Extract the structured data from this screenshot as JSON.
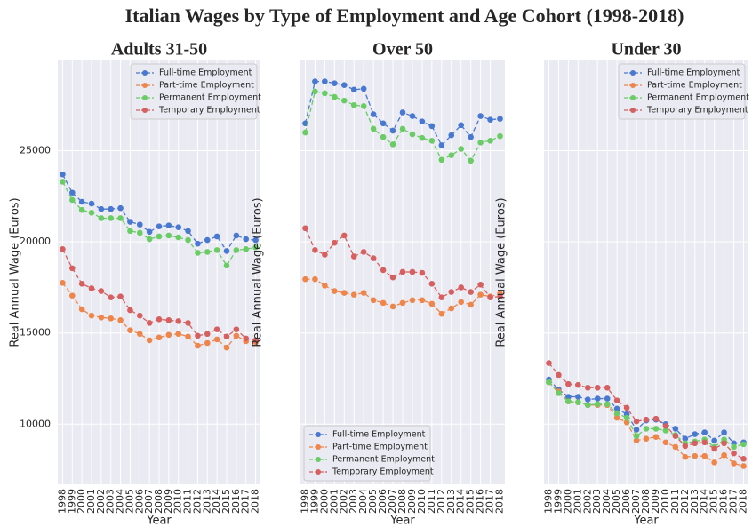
{
  "title": "Italian Wages by Type of Employment and Age Cohort (1998-2018)",
  "chart_data": [
    {
      "type": "line",
      "title": "Adults 31-50",
      "x_label": "Year",
      "y_label": "Real Annual Wage (Euros)",
      "x": [
        1998,
        1999,
        2000,
        2001,
        2002,
        2003,
        2004,
        2005,
        2006,
        2007,
        2008,
        2009,
        2010,
        2011,
        2012,
        2013,
        2014,
        2015,
        2016,
        2017,
        2018
      ],
      "xlim": [
        1997.5,
        2018.5
      ],
      "ylim": [
        6700,
        29950
      ],
      "yticks": [
        10000,
        15000,
        20000,
        25000
      ],
      "ytick_labels": true,
      "grid": true,
      "legend": "upper right",
      "series": [
        {
          "name": "Full-time Employment",
          "color": "#4878d0",
          "values": [
            23700,
            22700,
            22200,
            22100,
            21800,
            21800,
            21850,
            21100,
            20950,
            20550,
            20850,
            20900,
            20800,
            20600,
            19900,
            20100,
            20300,
            19500,
            20350,
            20150,
            20100
          ]
        },
        {
          "name": "Part-time Employment",
          "color": "#ee854a",
          "values": [
            17750,
            17050,
            16300,
            15950,
            15850,
            15800,
            15700,
            15150,
            14950,
            14600,
            14750,
            14900,
            14950,
            14800,
            14300,
            14450,
            14650,
            14200,
            14850,
            14550,
            14500
          ]
        },
        {
          "name": "Permanent Employment",
          "color": "#6acc64",
          "values": [
            23300,
            22300,
            21750,
            21600,
            21300,
            21300,
            21300,
            20600,
            20500,
            20150,
            20300,
            20350,
            20250,
            20100,
            19400,
            19450,
            19550,
            18700,
            19550,
            19600,
            19700
          ]
        },
        {
          "name": "Temporary Employment",
          "color": "#d65f5f",
          "values": [
            19600,
            18550,
            17700,
            17450,
            17300,
            16950,
            17000,
            16250,
            15950,
            15550,
            15750,
            15700,
            15650,
            15550,
            14850,
            14950,
            15200,
            14800,
            15200,
            14700,
            14600
          ]
        }
      ]
    },
    {
      "type": "line",
      "title": "Over 50",
      "x_label": "Year",
      "y_label": "Real Annual Wage (Euros)",
      "x": [
        1998,
        1999,
        2000,
        2001,
        2002,
        2003,
        2004,
        2005,
        2006,
        2007,
        2008,
        2009,
        2010,
        2011,
        2012,
        2013,
        2014,
        2015,
        2016,
        2017,
        2018
      ],
      "xlim": [
        1997.5,
        2018.5
      ],
      "ylim": [
        6700,
        29950
      ],
      "yticks": [
        10000,
        15000,
        20000,
        25000
      ],
      "ytick_labels": false,
      "grid": true,
      "legend": "lower left",
      "series": [
        {
          "name": "Full-time Employment",
          "color": "#4878d0",
          "values": [
            26500,
            28800,
            28800,
            28700,
            28600,
            28350,
            28400,
            27000,
            26500,
            26100,
            27100,
            26900,
            26600,
            26350,
            25300,
            25850,
            26400,
            25750,
            26900,
            26700,
            26750
          ]
        },
        {
          "name": "Part-time Employment",
          "color": "#ee854a",
          "values": [
            17950,
            17950,
            17600,
            17300,
            17200,
            17100,
            17200,
            16800,
            16650,
            16450,
            16650,
            16800,
            16800,
            16600,
            16050,
            16350,
            16700,
            16550,
            17100,
            17000,
            17150
          ]
        },
        {
          "name": "Permanent Employment",
          "color": "#6acc64",
          "values": [
            26000,
            28250,
            28150,
            27950,
            27750,
            27500,
            27450,
            26200,
            25750,
            25350,
            26200,
            25900,
            25700,
            25550,
            24500,
            24750,
            25100,
            24450,
            25450,
            25550,
            25800
          ]
        },
        {
          "name": "Temporary Employment",
          "color": "#d65f5f",
          "values": [
            20750,
            19550,
            19300,
            19950,
            20350,
            19200,
            19450,
            19100,
            18450,
            18050,
            18350,
            18350,
            18300,
            17700,
            16950,
            17250,
            17500,
            17250,
            17650,
            16950,
            17000
          ]
        }
      ]
    },
    {
      "type": "line",
      "title": "Under 30",
      "x_label": "Year",
      "y_label": "Real Annual Wage (Euros)",
      "x": [
        1998,
        1999,
        2000,
        2001,
        2002,
        2003,
        2004,
        2005,
        2006,
        2007,
        2008,
        2009,
        2010,
        2011,
        2012,
        2013,
        2014,
        2015,
        2016,
        2017,
        2018
      ],
      "xlim": [
        1997.5,
        2018.5
      ],
      "ylim": [
        6700,
        29950
      ],
      "yticks": [
        10000,
        15000,
        20000,
        25000
      ],
      "ytick_labels": false,
      "grid": true,
      "legend": "upper right",
      "series": [
        {
          "name": "Full-time Employment",
          "color": "#4878d0",
          "values": [
            12450,
            11900,
            11500,
            11500,
            11350,
            11400,
            11400,
            10850,
            10550,
            9700,
            10200,
            10250,
            10000,
            9750,
            9200,
            9450,
            9550,
            9100,
            9550,
            8950,
            9000
          ]
        },
        {
          "name": "Part-time Employment",
          "color": "#ee854a",
          "values": [
            12300,
            11800,
            11250,
            11200,
            11050,
            11050,
            11050,
            10350,
            10100,
            9100,
            9200,
            9300,
            9000,
            8750,
            8200,
            8250,
            8250,
            7900,
            8300,
            7850,
            7700
          ]
        },
        {
          "name": "Permanent Employment",
          "color": "#6acc64",
          "values": [
            12300,
            11700,
            11250,
            11200,
            11050,
            11100,
            11100,
            10600,
            10350,
            9350,
            9750,
            9750,
            9650,
            9400,
            8950,
            9050,
            9150,
            8750,
            9150,
            8750,
            8900
          ]
        },
        {
          "name": "Temporary Employment",
          "color": "#d65f5f",
          "values": [
            13350,
            12700,
            12200,
            12150,
            12000,
            12000,
            12000,
            11300,
            10900,
            10150,
            10250,
            10300,
            9900,
            9350,
            8800,
            8950,
            9000,
            8650,
            8950,
            8400,
            8100
          ]
        }
      ]
    }
  ]
}
